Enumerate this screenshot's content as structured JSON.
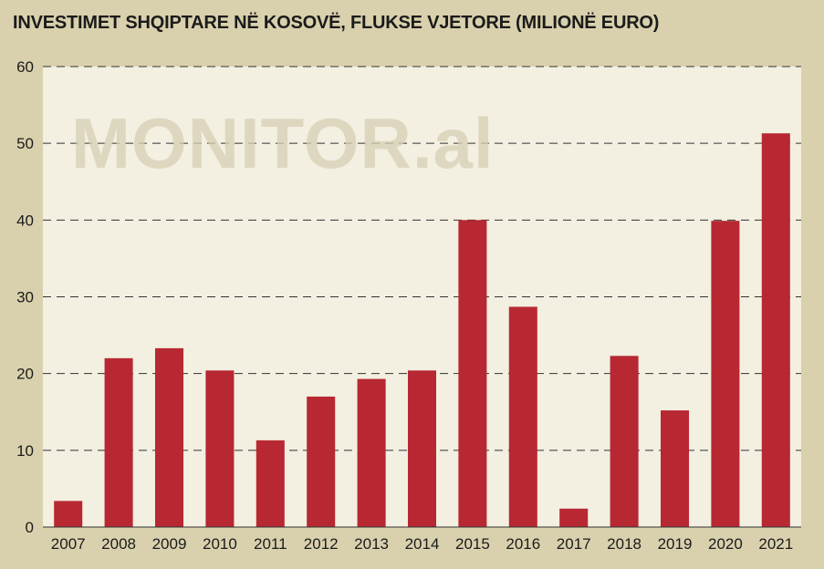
{
  "title": "INVESTIMET SHQIPTARE NË KOSOVË, FLUKSE VJETORE (MILIONË EURO)",
  "watermark": "MONITOR.al",
  "colors": {
    "background": "#d9d1ad",
    "plot_area": "#f3efe1",
    "bar": "#b72832",
    "grid": "#333333"
  },
  "chart_data": {
    "type": "bar",
    "title": "INVESTIMET SHQIPTARE NË KOSOVË, FLUKSE VJETORE (MILIONË EURO)",
    "xlabel": "",
    "ylabel": "",
    "categories": [
      "2007",
      "2008",
      "2009",
      "2010",
      "2011",
      "2012",
      "2013",
      "2014",
      "2015",
      "2016",
      "2017",
      "2018",
      "2019",
      "2020",
      "2021"
    ],
    "values": [
      3.4,
      22,
      23.3,
      20.4,
      11.3,
      17,
      19.3,
      20.4,
      40,
      28.7,
      2.4,
      22.3,
      15.2,
      39.9,
      51.3
    ],
    "ylim": [
      0,
      60
    ],
    "yticks": [
      0,
      10,
      20,
      30,
      40,
      50,
      60
    ],
    "grid": true,
    "grid_style": "dashed",
    "legend": "none"
  }
}
